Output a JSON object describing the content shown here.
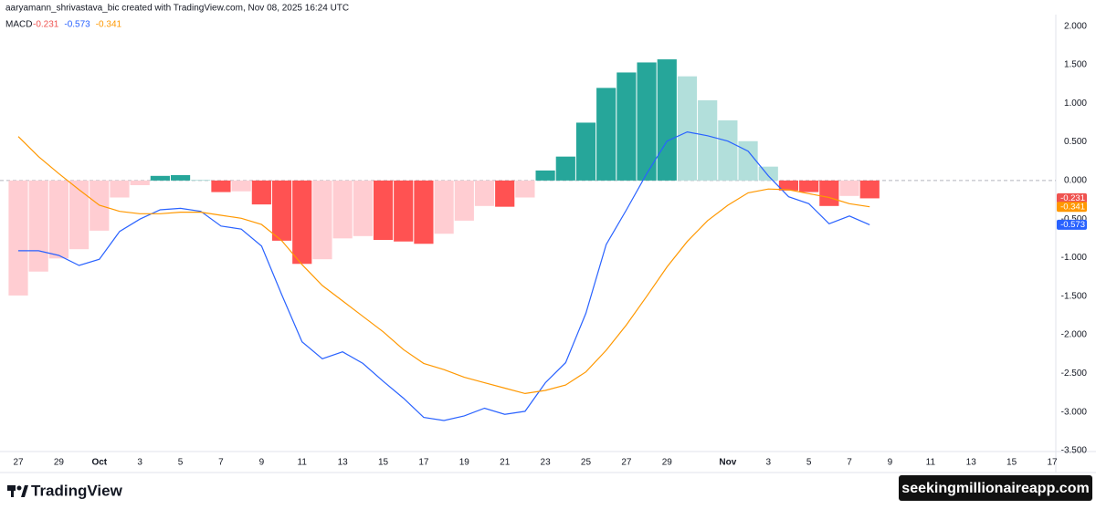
{
  "header": "aaryamann_shrivastava_bic created with TradingView.com, Nov 08, 2025 16:24 UTC",
  "footer": {
    "logo": "TradingView",
    "watermark": "seekingmillionaireapp.com"
  },
  "chart_data": {
    "type": "macd",
    "title": "MACD",
    "categories": [
      "27",
      null,
      "29",
      null,
      "Oct",
      null,
      "3",
      null,
      "5",
      null,
      "7",
      null,
      "9",
      null,
      "11",
      null,
      "13",
      null,
      "15",
      null,
      "17",
      null,
      "19",
      null,
      "21",
      null,
      "23",
      null,
      "25",
      null,
      "27",
      null,
      "29",
      null,
      null,
      "Nov",
      null,
      "3",
      null,
      "5",
      null,
      "7",
      null,
      "9",
      null,
      "11",
      null,
      "13",
      null,
      "15",
      null,
      "17"
    ],
    "series": [
      {
        "type": "bar",
        "color": "#ef5350",
        "colors": {
          "grow_above": "#26a69a",
          "fall_above": "#b2dfdb",
          "grow_below": "#ffcdd2",
          "fall_below": "#ff5252"
        },
        "values": [
          -1.49,
          -1.18,
          -1.01,
          -0.89,
          -0.65,
          -0.22,
          -0.06,
          0.06,
          0.07,
          0.01,
          -0.15,
          -0.14,
          -0.31,
          -0.78,
          -1.08,
          -1.02,
          -0.75,
          -0.72,
          -0.77,
          -0.79,
          -0.82,
          -0.69,
          -0.52,
          -0.33,
          -0.34,
          -0.22,
          0.13,
          0.31,
          0.75,
          1.2,
          1.4,
          1.53,
          1.57,
          1.35,
          1.04,
          0.78,
          0.51,
          0.18,
          -0.13,
          -0.15,
          -0.33,
          -0.2,
          -0.231,
          null,
          null,
          null,
          null,
          null,
          null,
          null,
          null,
          null
        ]
      },
      {
        "type": "line",
        "color": "#2962ff",
        "values": [
          -0.91,
          -0.91,
          -0.97,
          -1.1,
          -1.02,
          -0.66,
          -0.5,
          -0.38,
          -0.36,
          -0.4,
          -0.59,
          -0.63,
          -0.85,
          -1.48,
          -2.09,
          -2.31,
          -2.22,
          -2.37,
          -2.6,
          -2.82,
          -3.07,
          -3.11,
          -3.05,
          -2.95,
          -3.03,
          -2.99,
          -2.62,
          -2.36,
          -1.72,
          -0.83,
          -0.38,
          0.09,
          0.51,
          0.63,
          0.58,
          0.51,
          0.38,
          0.06,
          -0.21,
          -0.3,
          -0.56,
          -0.46,
          -0.573,
          null,
          null,
          null,
          null,
          null,
          null,
          null,
          null,
          null
        ]
      },
      {
        "type": "line",
        "color": "#ff9800",
        "values": [
          0.57,
          0.31,
          0.09,
          -0.12,
          -0.32,
          -0.4,
          -0.43,
          -0.43,
          -0.41,
          -0.41,
          -0.45,
          -0.49,
          -0.57,
          -0.78,
          -1.09,
          -1.36,
          -1.56,
          -1.76,
          -1.96,
          -2.19,
          -2.37,
          -2.45,
          -2.55,
          -2.62,
          -2.69,
          -2.76,
          -2.72,
          -2.65,
          -2.48,
          -2.2,
          -1.87,
          -1.5,
          -1.12,
          -0.79,
          -0.52,
          -0.32,
          -0.16,
          -0.11,
          -0.12,
          -0.17,
          -0.22,
          -0.3,
          -0.341,
          null,
          null,
          null,
          null,
          null,
          null,
          null,
          null,
          null
        ]
      }
    ],
    "ylim": [
      -3.5,
      2.15
    ],
    "yticks": [
      {
        "value": 2,
        "label": "2.000"
      },
      {
        "value": 1.5,
        "label": "1.500"
      },
      {
        "value": 1,
        "label": "1.000"
      },
      {
        "value": 0.5,
        "label": "0.500"
      },
      {
        "value": 0,
        "label": "0.000"
      },
      {
        "value": -0.5,
        "label": "-0.500"
      },
      {
        "value": -1,
        "label": "-1.000"
      },
      {
        "value": -1.5,
        "label": "-1.500"
      },
      {
        "value": -2,
        "label": "-2.000"
      },
      {
        "value": -2.5,
        "label": "-2.500"
      },
      {
        "value": -3,
        "label": "-3.000"
      },
      {
        "value": -3.5,
        "label": "-3.500"
      }
    ],
    "zero_line": true,
    "grid": false
  }
}
